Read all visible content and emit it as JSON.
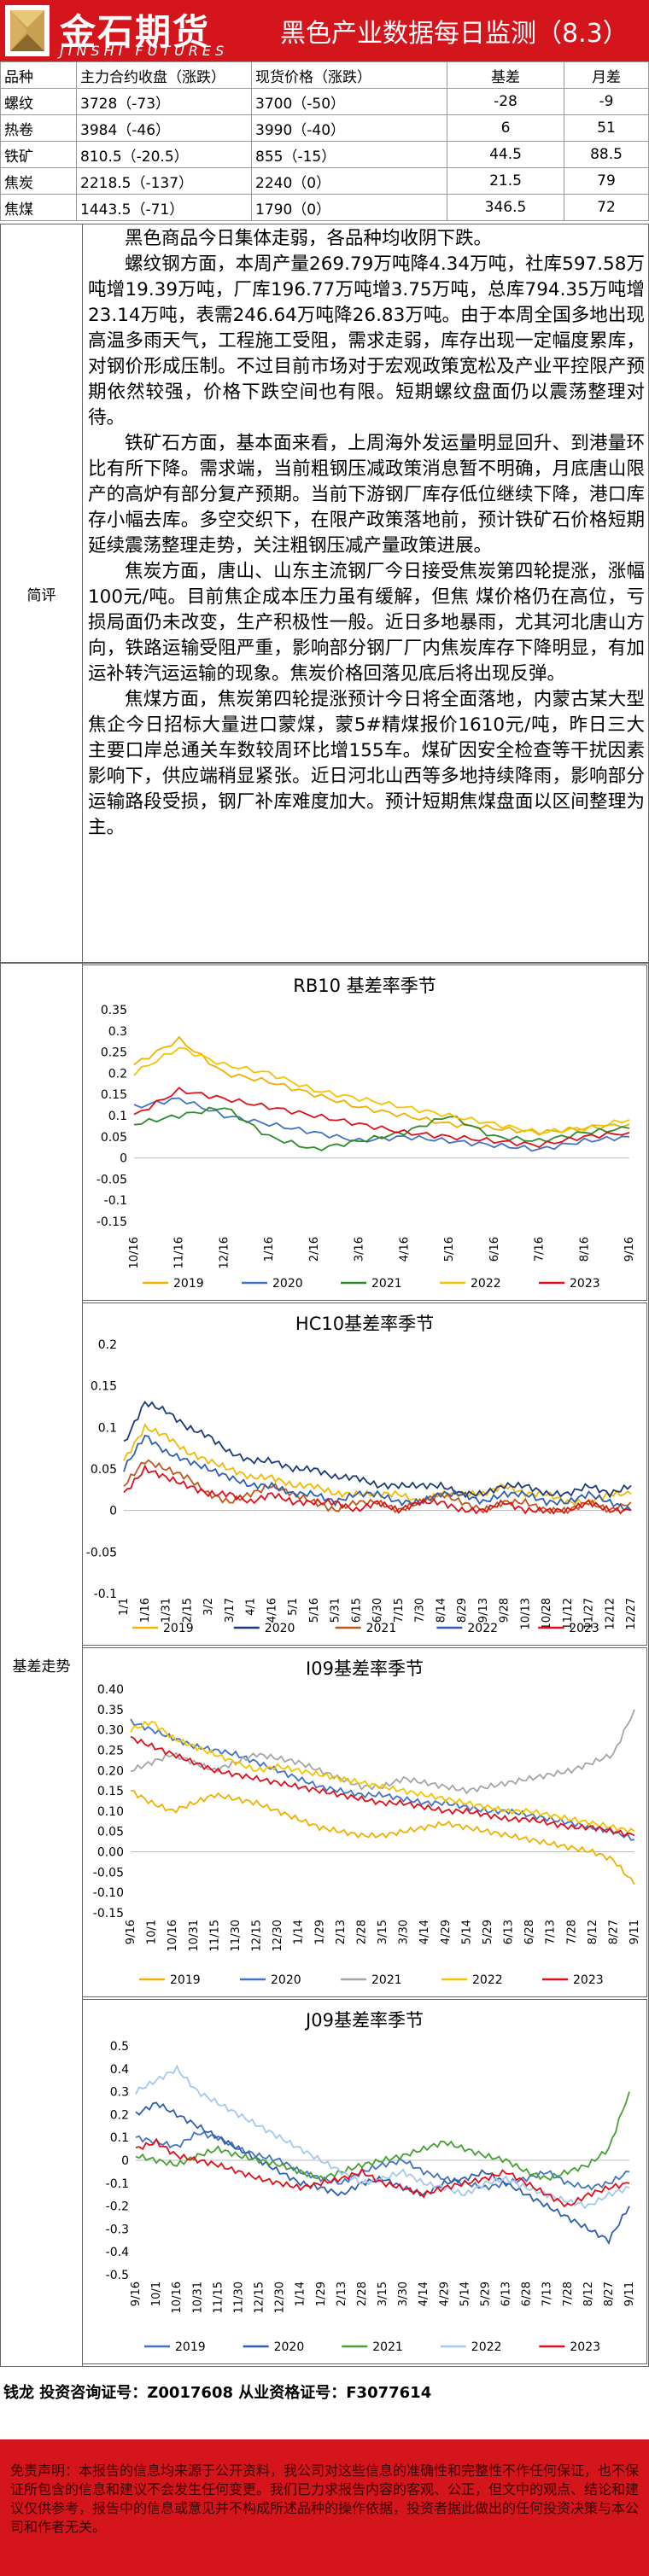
{
  "header": {
    "logo_cn": "金石期货",
    "logo_en": "JINSHI FUTURES",
    "title": "黑色产业数据每日监测（8.3）"
  },
  "price_table": {
    "headers": [
      "品种",
      "主力合约收盘（涨跌）",
      "现货价格（涨跌）",
      "基差",
      "月差"
    ],
    "rows": [
      [
        "螺纹",
        "3728（-73）",
        "3700（-50）",
        "-28",
        "-9"
      ],
      [
        "热卷",
        "3984（-46）",
        "3990（-40）",
        "6",
        "51"
      ],
      [
        "铁矿",
        "810.5（-20.5）",
        "855（-15）",
        "44.5",
        "88.5"
      ],
      [
        "焦炭",
        "2218.5（-137）",
        "2240（0）",
        "21.5",
        "79"
      ],
      [
        "焦煤",
        "1443.5（-71）",
        "1790（0）",
        "346.5",
        "72"
      ]
    ]
  },
  "commentary": {
    "label": "简评",
    "paragraphs": [
      "黑色商品今日集体走弱，各品种均收阴下跌。",
      "螺纹钢方面，本周产量269.79万吨降4.34万吨，社库597.58万吨增19.39万吨，厂库196.77万吨增3.75万吨，总库794.35万吨增23.14万吨，表需246.64万吨降26.83万吨。由于本周全国多地出现高温多雨天气，工程施工受阻，需求走弱，库存出现一定幅度累库，对钢价形成压制。不过目前市场对于宏观政策宽松及产业平控限产预期依然较强，价格下跌空间也有限。短期螺纹盘面仍以震荡整理对待。",
      "铁矿石方面，基本面来看，上周海外发运量明显回升、到港量环比有所下降。需求端，当前粗钢压减政策消息暂不明确，月底唐山限产的高炉有部分复产预期。当前下游钢厂库存低位继续下降，港口库存小幅去库。多空交织下，在限产政策落地前，预计铁矿石价格短期延续震荡整理走势，关注粗钢压减产量政策进展。",
      "焦炭方面，唐山、山东主流钢厂今日接受焦炭第四轮提涨，涨幅100元/吨。目前焦企成本压力虽有缓解，但焦 煤价格仍在高位，亏损局面仍未改变，生产积极性一般。近日多地暴雨，尤其河北唐山方向，铁路运输受阻严重，影响部分钢厂厂内焦炭库存下降明显，有加运补转汽运运输的现象。焦炭价格回落见底后将出现反弹。",
      "焦煤方面，焦炭第四轮提涨预计今日将全面落地，内蒙古某大型焦企今日招标大量进口蒙煤，蒙5#精煤报价1610元/吨，昨日三大主要口岸总通关车数较周环比增155车。煤矿因安全检查等干扰因素影响下，供应端稍显紧张。近日河北山西等多地持续降雨，影响部分运输路段受损，钢厂补库难度加大。预计短期焦煤盘面以区间整理为主。"
    ]
  },
  "basis_section": {
    "label": "基差走势"
  },
  "colors": {
    "2019": "#f0b000",
    "2020": "#4472c4",
    "2021": "#a5a5a5",
    "2021_rb": "#2f8b2f",
    "2022": "#f5c400",
    "2023": "#e0101a",
    "2019_hc": "#f5b800",
    "2020_hc": "#1f3a7a",
    "2021_hc": "#c0561a",
    "2022_hc": "#2e5fb0",
    "2021_j": "#48a032",
    "2022_j": "#a6c8ec",
    "brand_red": "#d4151c"
  },
  "chart_data": [
    {
      "type": "line",
      "title": "RB10 基差率季节",
      "x": [
        "10/16",
        "11/16",
        "12/16",
        "1/16",
        "2/16",
        "3/16",
        "4/16",
        "5/16",
        "6/16",
        "7/16",
        "8/16",
        "9/16"
      ],
      "ylim": [
        -0.15,
        0.35
      ],
      "yticks": [
        "0.35",
        "0.3",
        "0.25",
        "0.2",
        "0.15",
        "0.1",
        "0.05",
        "0",
        "-0.05",
        "-0.1",
        "-0.15"
      ],
      "legend": [
        "2019",
        "2020",
        "2021",
        "2022",
        "2023"
      ],
      "series": [
        {
          "name": "2019",
          "values": [
            0.22,
            0.28,
            0.2,
            0.18,
            0.15,
            0.12,
            0.1,
            0.08,
            0.07,
            0.06,
            0.07,
            0.08
          ]
        },
        {
          "name": "2020",
          "values": [
            0.12,
            0.14,
            0.1,
            0.08,
            0.06,
            0.04,
            0.05,
            0.04,
            0.03,
            0.02,
            0.04,
            0.05
          ]
        },
        {
          "name": "2021",
          "values": [
            0.08,
            0.1,
            0.12,
            0.05,
            0.02,
            0.04,
            0.06,
            0.1,
            0.05,
            0.04,
            0.06,
            0.07
          ]
        },
        {
          "name": "2022",
          "values": [
            0.2,
            0.26,
            0.22,
            0.2,
            0.16,
            0.14,
            0.12,
            0.1,
            0.08,
            0.06,
            0.07,
            0.09
          ]
        },
        {
          "name": "2023",
          "values": [
            0.1,
            0.16,
            0.14,
            0.12,
            0.1,
            0.08,
            0.06,
            0.05,
            0.04,
            0.03,
            0.05,
            0.06
          ]
        }
      ]
    },
    {
      "type": "line",
      "title": "HC10基差率季节",
      "x": [
        "1/1",
        "1/16",
        "1/31",
        "2/15",
        "3/2",
        "3/17",
        "4/1",
        "4/16",
        "5/1",
        "5/16",
        "5/31",
        "6/15",
        "6/30",
        "7/15",
        "7/30",
        "8/14",
        "8/29",
        "9/13",
        "9/28",
        "10/13",
        "10/28",
        "11/12",
        "11/27",
        "12/12",
        "12/27"
      ],
      "ylim": [
        -0.1,
        0.2
      ],
      "yticks": [
        "0.2",
        "0.15",
        "0.1",
        "0.05",
        "0",
        "-0.05",
        "-0.1"
      ],
      "legend": [
        "2019",
        "2020",
        "2021",
        "2022",
        "2023"
      ],
      "series": [
        {
          "name": "2019",
          "values": [
            0.06,
            0.1,
            0.09,
            0.07,
            0.06,
            0.05,
            0.04,
            0.04,
            0.03,
            0.03,
            0.02,
            0.02,
            0.02,
            0.02,
            0.01,
            0.02,
            0.02,
            0.02,
            0.03,
            0.02,
            0.02,
            0.01,
            0.01,
            0.02,
            0.02
          ]
        },
        {
          "name": "2020",
          "values": [
            0.08,
            0.13,
            0.12,
            0.1,
            0.09,
            0.07,
            0.06,
            0.06,
            0.05,
            0.05,
            0.04,
            0.04,
            0.03,
            0.03,
            0.03,
            0.03,
            0.02,
            0.02,
            0.03,
            0.03,
            0.02,
            0.02,
            0.03,
            0.02,
            0.03
          ]
        },
        {
          "name": "2021",
          "values": [
            0.03,
            0.06,
            0.05,
            0.04,
            0.02,
            0.01,
            0.02,
            0.03,
            0.02,
            0.01,
            0.0,
            0.01,
            0.01,
            0.0,
            0.01,
            0.02,
            0.01,
            0.0,
            0.01,
            0.01,
            0.0,
            0.0,
            0.01,
            0.0,
            0.01
          ]
        },
        {
          "name": "2022",
          "values": [
            0.05,
            0.09,
            0.07,
            0.06,
            0.05,
            0.04,
            0.03,
            0.03,
            0.02,
            0.02,
            0.01,
            0.02,
            0.02,
            0.01,
            0.01,
            0.02,
            0.02,
            0.01,
            0.02,
            0.02,
            0.01,
            0.01,
            0.02,
            0.01,
            0.0
          ]
        },
        {
          "name": "2023",
          "values": [
            0.02,
            0.05,
            0.04,
            0.03,
            0.02,
            0.02,
            0.01,
            0.02,
            0.01,
            0.01,
            0.01,
            0.0,
            0.01,
            0.0,
            0.01,
            0.01,
            0.0,
            0.0,
            0.01,
            0.0,
            0.0,
            0.0,
            0.01,
            0.0,
            0.0
          ]
        }
      ]
    },
    {
      "type": "line",
      "title": "I09基差率季节",
      "x": [
        "9/16",
        "10/1",
        "10/16",
        "10/31",
        "11/15",
        "11/30",
        "12/15",
        "12/30",
        "1/14",
        "1/29",
        "2/13",
        "2/28",
        "3/15",
        "3/30",
        "4/14",
        "4/29",
        "5/14",
        "5/29",
        "6/13",
        "6/28",
        "7/13",
        "7/28",
        "8/12",
        "8/27",
        "9/11"
      ],
      "ylim": [
        -0.15,
        0.4
      ],
      "yticks": [
        "0.40",
        "0.35",
        "0.30",
        "0.25",
        "0.20",
        "0.15",
        "0.10",
        "0.05",
        "0.00",
        "-0.05",
        "-0.10",
        "-0.15"
      ],
      "legend": [
        "2019",
        "2020",
        "2021",
        "2022",
        "2023"
      ],
      "series": [
        {
          "name": "2019",
          "values": [
            0.15,
            0.12,
            0.1,
            0.12,
            0.14,
            0.13,
            0.12,
            0.1,
            0.08,
            0.06,
            0.05,
            0.04,
            0.04,
            0.05,
            0.06,
            0.07,
            0.06,
            0.05,
            0.04,
            0.03,
            0.02,
            0.01,
            0.0,
            -0.02,
            -0.08
          ]
        },
        {
          "name": "2020",
          "values": [
            0.32,
            0.3,
            0.28,
            0.26,
            0.25,
            0.24,
            0.22,
            0.2,
            0.18,
            0.16,
            0.15,
            0.14,
            0.14,
            0.13,
            0.12,
            0.12,
            0.11,
            0.1,
            0.1,
            0.09,
            0.08,
            0.07,
            0.06,
            0.05,
            0.03
          ]
        },
        {
          "name": "2021",
          "values": [
            0.2,
            0.22,
            0.24,
            0.22,
            0.2,
            0.22,
            0.24,
            0.23,
            0.22,
            0.2,
            0.18,
            0.16,
            0.16,
            0.18,
            0.17,
            0.16,
            0.15,
            0.16,
            0.17,
            0.18,
            0.19,
            0.2,
            0.22,
            0.24,
            0.35
          ]
        },
        {
          "name": "2022",
          "values": [
            0.3,
            0.32,
            0.28,
            0.26,
            0.24,
            0.22,
            0.2,
            0.21,
            0.2,
            0.19,
            0.18,
            0.17,
            0.16,
            0.15,
            0.14,
            0.13,
            0.12,
            0.11,
            0.1,
            0.1,
            0.09,
            0.08,
            0.07,
            0.06,
            0.05
          ]
        },
        {
          "name": "2023",
          "values": [
            0.28,
            0.26,
            0.24,
            0.22,
            0.2,
            0.19,
            0.18,
            0.17,
            0.16,
            0.15,
            0.14,
            0.13,
            0.12,
            0.12,
            0.11,
            0.1,
            0.1,
            0.09,
            0.08,
            0.08,
            0.07,
            0.06,
            0.06,
            0.05,
            0.04
          ]
        }
      ]
    },
    {
      "type": "line",
      "title": "J09基差率季节",
      "x": [
        "9/16",
        "10/1",
        "10/16",
        "10/31",
        "11/15",
        "11/30",
        "12/15",
        "12/30",
        "1/14",
        "1/29",
        "2/13",
        "2/28",
        "3/15",
        "3/30",
        "4/14",
        "4/29",
        "5/14",
        "5/29",
        "6/13",
        "6/28",
        "7/13",
        "7/28",
        "8/12",
        "8/27",
        "9/11"
      ],
      "ylim": [
        -0.5,
        0.5
      ],
      "yticks": [
        "0.5",
        "0.4",
        "0.3",
        "0.2",
        "0.1",
        "0",
        "-0.1",
        "-0.2",
        "-0.3",
        "-0.4",
        "-0.5"
      ],
      "legend": [
        "2019",
        "2020",
        "2021",
        "2022",
        "2023"
      ],
      "series": [
        {
          "name": "2019",
          "values": [
            0.1,
            0.08,
            0.06,
            0.12,
            0.1,
            0.05,
            0.02,
            0.0,
            -0.05,
            -0.08,
            -0.1,
            -0.05,
            -0.02,
            0.0,
            -0.05,
            -0.08,
            -0.1,
            -0.12,
            -0.1,
            -0.08,
            -0.05,
            -0.1,
            -0.12,
            -0.1,
            -0.05
          ]
        },
        {
          "name": "2020",
          "values": [
            0.2,
            0.25,
            0.2,
            0.15,
            0.1,
            0.05,
            0.0,
            -0.05,
            -0.1,
            -0.12,
            -0.15,
            -0.1,
            -0.08,
            -0.12,
            -0.15,
            -0.1,
            -0.08,
            -0.05,
            -0.1,
            -0.15,
            -0.2,
            -0.25,
            -0.3,
            -0.35,
            -0.2
          ]
        },
        {
          "name": "2021",
          "values": [
            0.02,
            0.0,
            -0.02,
            0.02,
            0.05,
            0.02,
            0.0,
            -0.02,
            -0.05,
            -0.08,
            -0.05,
            -0.02,
            0.0,
            0.02,
            0.05,
            0.08,
            0.05,
            0.02,
            0.0,
            -0.05,
            -0.08,
            -0.05,
            -0.02,
            0.05,
            0.3
          ]
        },
        {
          "name": "2022",
          "values": [
            0.3,
            0.35,
            0.4,
            0.3,
            0.25,
            0.2,
            0.15,
            0.1,
            0.05,
            0.0,
            -0.05,
            -0.1,
            -0.08,
            -0.05,
            -0.1,
            -0.12,
            -0.15,
            -0.1,
            -0.08,
            -0.12,
            -0.15,
            -0.18,
            -0.2,
            -0.15,
            -0.12
          ]
        },
        {
          "name": "2023",
          "values": [
            0.05,
            0.08,
            0.02,
            0.0,
            -0.02,
            -0.05,
            -0.08,
            -0.1,
            -0.12,
            -0.1,
            -0.08,
            -0.05,
            -0.1,
            -0.12,
            -0.15,
            -0.12,
            -0.1,
            -0.08,
            -0.05,
            -0.1,
            -0.15,
            -0.2,
            -0.15,
            -0.12,
            -0.1
          ]
        }
      ]
    }
  ],
  "footer": {
    "analyst": "钱龙  投资咨询证号：Z0017608  从业资格证号：F3077614",
    "disclaimer": "免责声明：本报告的信息均来源于公开资料，我公司对这些信息的准确性和完整性不作任何保证，也不保证所包含的信息和建议不会发生任何变更。我们已力求报告内容的客观、公正，但文中的观点、结论和建议仅供参考，报告中的信息或意见并不构成所述品种的操作依据，投资者据此做出的任何投资决策与本公司和作者无关。"
  }
}
